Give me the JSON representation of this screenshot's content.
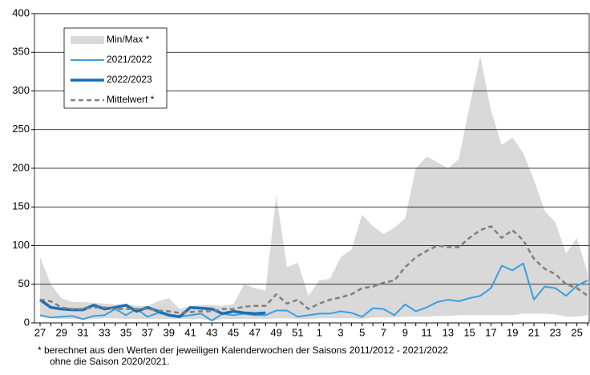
{
  "chart_data": {
    "type": "line",
    "categories": [
      "27",
      null,
      "29",
      null,
      "31",
      null,
      "33",
      null,
      "35",
      null,
      "37",
      null,
      "39",
      null,
      "41",
      null,
      "43",
      null,
      "45",
      null,
      "47",
      null,
      "49",
      null,
      "51",
      null,
      "1",
      null,
      "3",
      null,
      "5",
      null,
      "7",
      null,
      "9",
      null,
      "11",
      null,
      "13",
      null,
      "15",
      null,
      "17",
      null,
      "19",
      null,
      "21",
      null,
      "23",
      null,
      "25",
      null
    ],
    "ylim": [
      0,
      400
    ],
    "yticks": [
      0,
      50,
      100,
      150,
      200,
      250,
      300,
      350,
      400
    ],
    "grid": true,
    "series": [
      {
        "name": "Min/Max *",
        "color": "#d9d9d9",
        "values": [
          85,
          50,
          32,
          27,
          27,
          26,
          25,
          24,
          24,
          22,
          22,
          28,
          32,
          18,
          22,
          23,
          23,
          22,
          24,
          50,
          45,
          42,
          165,
          72,
          78,
          35,
          55,
          57,
          85,
          95,
          140,
          125,
          115,
          123,
          135,
          200,
          215,
          208,
          200,
          212,
          280,
          345,
          275,
          230,
          240,
          220,
          185,
          145,
          130,
          90,
          110,
          65
        ],
        "low": [
          8,
          6,
          5,
          5,
          4,
          5,
          6,
          6,
          5,
          5,
          5,
          5,
          5,
          5,
          5,
          5,
          3,
          5,
          5,
          5,
          5,
          5,
          6,
          6,
          5,
          5,
          6,
          6,
          6,
          6,
          5,
          7,
          7,
          7,
          8,
          8,
          8,
          9,
          9,
          10,
          10,
          10,
          10,
          10,
          10,
          12,
          12,
          12,
          11,
          8,
          8,
          10
        ]
      },
      {
        "name": "2021/2022",
        "color": "#3c9ee0",
        "values": [
          10,
          7,
          8,
          9,
          5,
          9,
          10,
          18,
          10,
          18,
          8,
          13,
          10,
          8,
          10,
          12,
          3,
          12,
          10,
          12,
          10,
          10,
          16,
          16,
          8,
          10,
          12,
          12,
          15,
          13,
          8,
          19,
          18,
          10,
          24,
          15,
          20,
          27,
          30,
          28,
          32,
          35,
          45,
          74,
          68,
          77,
          30,
          47,
          45,
          35,
          48,
          55
        ]
      },
      {
        "name": "2022/2023",
        "color": "#1a6fb5",
        "values": [
          30,
          20,
          18,
          17,
          17,
          23,
          18,
          20,
          23,
          15,
          20,
          15,
          10,
          8,
          20,
          19,
          18,
          12,
          15,
          13,
          12,
          13,
          null,
          null,
          null,
          null,
          null,
          null,
          null,
          null,
          null,
          null,
          null,
          null,
          null,
          null,
          null,
          null,
          null,
          null,
          null,
          null,
          null,
          null,
          null,
          null,
          null,
          null,
          null,
          null,
          null,
          null
        ]
      },
      {
        "name": "Mittelwert *",
        "color": "#808080",
        "values": [
          30,
          28,
          20,
          18,
          18,
          20,
          20,
          18,
          18,
          18,
          18,
          16,
          15,
          13,
          14,
          15,
          15,
          18,
          18,
          21,
          22,
          22,
          37,
          25,
          30,
          18,
          25,
          30,
          33,
          37,
          45,
          47,
          52,
          55,
          72,
          85,
          93,
          100,
          98,
          98,
          110,
          120,
          125,
          110,
          120,
          107,
          83,
          70,
          63,
          50,
          45,
          35
        ]
      }
    ],
    "footnote": [
      "* berechnet aus den Werten der jeweiligen Kalenderwochen der Saisons 2011/2012 - 2021/2022",
      "ohne die Saison 2020/2021."
    ]
  }
}
